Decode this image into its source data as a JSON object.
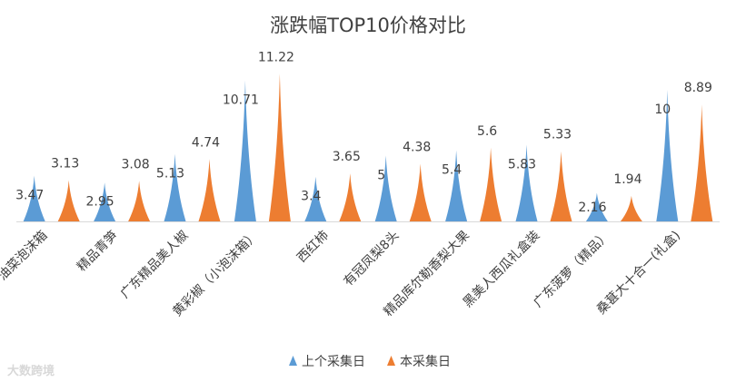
{
  "chart_data": {
    "type": "bar",
    "title": "涨跌幅TOP10价格对比",
    "categories": [
      "油菜泡沫箱",
      "精品青笋",
      "广东精品美人椒",
      "黄彩椒（小泡沫箱）",
      "西红柿",
      "有冠凤梨8头",
      "精品库尔勒香梨大果",
      "黑美人西瓜礼盒装",
      "广东菠萝（精品）",
      "桑葚大十合一(礼盒)"
    ],
    "series": [
      {
        "name": "上个采集日",
        "values": [
          3.47,
          2.95,
          5.13,
          10.71,
          3.4,
          5,
          5.4,
          5.83,
          2.16,
          10
        ],
        "color": "#5B9BD5"
      },
      {
        "name": "本采集日",
        "values": [
          3.13,
          3.08,
          4.74,
          11.22,
          3.65,
          4.38,
          5.6,
          5.33,
          1.94,
          8.89
        ],
        "color": "#ED7D31"
      }
    ],
    "value_labels": [
      [
        "3.47",
        "2.95",
        "5.13",
        "10.71",
        "3.4",
        "5",
        "5.4",
        "5.83",
        "2.16",
        "10"
      ],
      [
        "3.13",
        "3.08",
        "4.74",
        "11.22",
        "3.65",
        "4.38",
        "5.6",
        "5.33",
        "1.94",
        "8.89"
      ]
    ],
    "ylim": [
      0,
      11.5
    ],
    "mark_shape": "pointed-triangle",
    "grid": false,
    "legend_position": "bottom",
    "xlabel": "",
    "ylabel": ""
  },
  "watermark": "大数跨境"
}
